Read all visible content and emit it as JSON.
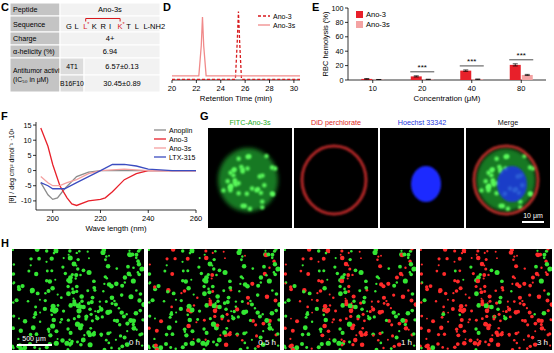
{
  "panel_c": {
    "label": "C",
    "rows": [
      {
        "label": "Peptide",
        "value": "Ano-3s"
      },
      {
        "label": "Sequence",
        "residues": [
          "G",
          "L",
          "L*",
          "K",
          "R",
          "I",
          "K*",
          "T",
          "L",
          "L-NH2"
        ]
      },
      {
        "label": "Charge",
        "value": "4+"
      },
      {
        "label": "α-helicity (%)",
        "value": "6.94"
      }
    ],
    "activity": {
      "label": "Antitumor activity",
      "sublabel": "(IC₅₀ in μM)",
      "rows": [
        {
          "cell": "4T1",
          "value": "6.57±0.13"
        },
        {
          "cell": "B16F10",
          "value": "30.45±0.89"
        }
      ]
    }
  },
  "chart_data": [
    {
      "title": "D",
      "type": "line",
      "xlabel": "Retention Time (min)",
      "xlim": [
        20,
        30.5
      ],
      "xticks": [
        20,
        22,
        24,
        26,
        28,
        30
      ],
      "ylim": [
        0,
        105
      ],
      "tick_labels": "x",
      "legend": "upper right",
      "series": [
        {
          "name": "Ano-3",
          "color": "#d7191c",
          "line_style": "dashed",
          "x": [
            20,
            25.2,
            25.35,
            25.45,
            25.55,
            25.7,
            30.5
          ],
          "values": [
            1,
            1,
            55,
            100,
            55,
            1,
            1
          ]
        },
        {
          "name": "Ano-3s",
          "color": "#f08a8a",
          "line_style": "solid",
          "x": [
            20,
            22.2,
            22.4,
            22.5,
            22.6,
            22.8,
            30.5
          ],
          "values": [
            6,
            6,
            50,
            92,
            50,
            6,
            6
          ]
        }
      ]
    },
    {
      "title": "E",
      "type": "bar",
      "xlabel": "Concentration (μM)",
      "ylabel": "RBC hemolysis (%)",
      "categories": [
        "10",
        "20",
        "40",
        "80"
      ],
      "ylim": [
        0,
        100
      ],
      "yticks": [
        0,
        20,
        40,
        60,
        80,
        100
      ],
      "legend": "upper left",
      "series": [
        {
          "name": "Ano-3",
          "color": "#e8202a",
          "values": [
            1.5,
            5,
            13,
            21
          ],
          "errors": [
            0.5,
            0.8,
            1,
            1.5
          ]
        },
        {
          "name": "Ano-3s",
          "color": "#f4a3a3",
          "values": [
            0.5,
            0.8,
            1,
            7
          ],
          "errors": [
            0.2,
            0.3,
            0.4,
            0.8
          ]
        }
      ],
      "annotations": [
        {
          "text": "***",
          "x": "20"
        },
        {
          "text": "***",
          "x": "40"
        },
        {
          "text": "***",
          "x": "80"
        }
      ]
    },
    {
      "title": "F",
      "type": "line",
      "xlabel": "Wave length (nm)",
      "ylabel": "[θ] / deg cm² dmol⁻¹ ·10³",
      "xlim": [
        193,
        260
      ],
      "xticks": [
        200,
        220,
        240,
        260
      ],
      "ylim": [
        -13,
        16
      ],
      "yticks": [
        -10,
        -5,
        0,
        5,
        10,
        15
      ],
      "legend": "upper right",
      "series": [
        {
          "name": "Anoplin",
          "color": "#8c8c8c",
          "line_style": "solid",
          "x": [
            195,
            198,
            200,
            202,
            205,
            210,
            215,
            220,
            230,
            240,
            250,
            260
          ],
          "values": [
            -4,
            -8,
            -9.5,
            -9,
            -6,
            -2,
            -0.5,
            0,
            0,
            0,
            0,
            0
          ]
        },
        {
          "name": "Ano-3",
          "color": "#e8202a",
          "line_style": "solid",
          "x": [
            195,
            198,
            200,
            203,
            206,
            208,
            210,
            215,
            220,
            222,
            225,
            230,
            235,
            240,
            250,
            260
          ],
          "values": [
            14,
            8,
            2,
            -5,
            -9,
            -11,
            -11.5,
            -10,
            -9.5,
            -9,
            -7,
            -3,
            -1,
            0,
            0,
            0
          ]
        },
        {
          "name": "Ano-3s",
          "color": "#f4a0a0",
          "line_style": "solid",
          "x": [
            195,
            198,
            200,
            203,
            206,
            210,
            215,
            220,
            230,
            240,
            260
          ],
          "values": [
            -2,
            -4,
            -5,
            -5,
            -4,
            -3,
            -1,
            0,
            0.5,
            0,
            0
          ]
        },
        {
          "name": "LTX-315",
          "color": "#3b4cc0",
          "line_style": "solid",
          "x": [
            195,
            198,
            200,
            205,
            210,
            215,
            220,
            225,
            230,
            235,
            240,
            250,
            260
          ],
          "values": [
            -4,
            -5,
            -6,
            -6,
            -4,
            -2,
            0,
            2,
            2,
            1.5,
            0.5,
            0,
            0
          ]
        }
      ]
    }
  ],
  "panel_g": {
    "label": "G",
    "images": [
      {
        "title": "FITC-Ano-3s",
        "color": "#22aa22"
      },
      {
        "title": "DiD perchlorate",
        "color": "#dd2222"
      },
      {
        "title": "Hoechst 33342",
        "color": "#2233dd"
      },
      {
        "title": "Merge",
        "color": "#111111"
      }
    ],
    "scale_bar": "10 μm"
  },
  "panel_h": {
    "label": "H",
    "times": [
      "0 h",
      "0.5 h",
      "1 h",
      "3 h"
    ],
    "scale_bar": "500 μm"
  }
}
